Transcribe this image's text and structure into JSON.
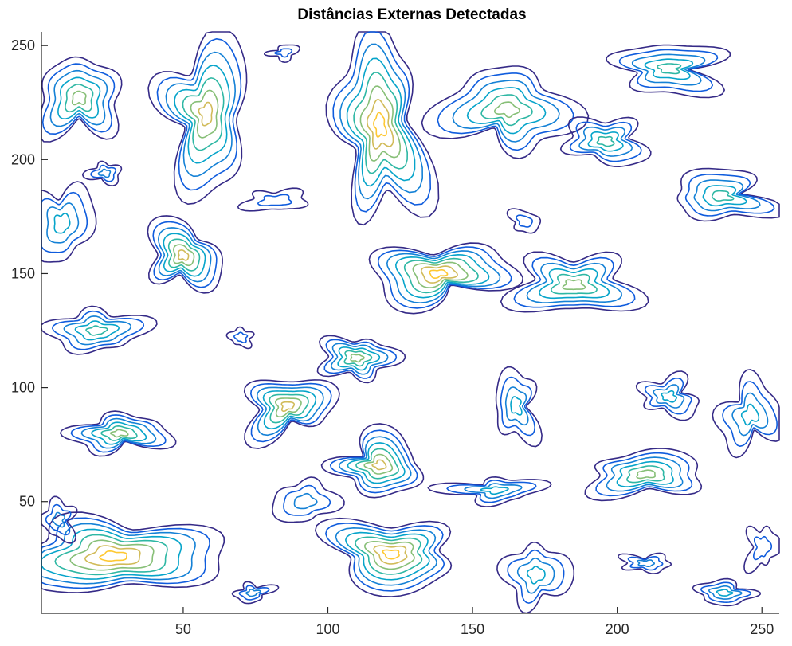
{
  "chart_data": {
    "type": "contour",
    "title": "Distâncias Externas Detectadas",
    "xlabel": "",
    "ylabel": "",
    "xlim": [
      1,
      256
    ],
    "ylim": [
      1,
      256
    ],
    "xticks": [
      50,
      100,
      150,
      200,
      250
    ],
    "yticks": [
      50,
      100,
      150,
      200,
      250
    ],
    "grid": false,
    "levels": [
      1,
      2,
      3,
      4,
      5,
      6,
      7
    ],
    "colormap": [
      "#352a87",
      "#0f5cdd",
      "#1481d6",
      "#06a4ca",
      "#2eb7a4",
      "#87bf77",
      "#d1bb59",
      "#fec832"
    ],
    "regions": [
      {
        "cx": 14,
        "cy": 227,
        "rx": 14,
        "ry": 18,
        "peak": 6
      },
      {
        "cx": 58,
        "cy": 220,
        "rx": 16,
        "ry": 30,
        "peak": 7
      },
      {
        "cx": 23,
        "cy": 194,
        "rx": 5,
        "ry": 5,
        "peak": 3
      },
      {
        "cx": 85,
        "cy": 247,
        "rx": 5,
        "ry": 3,
        "peak": 2
      },
      {
        "cx": 118,
        "cy": 215,
        "rx": 16,
        "ry": 38,
        "peak": 8
      },
      {
        "cx": 82,
        "cy": 182,
        "rx": 10,
        "ry": 5,
        "peak": 2
      },
      {
        "cx": 162,
        "cy": 222,
        "rx": 20,
        "ry": 20,
        "peak": 6
      },
      {
        "cx": 196,
        "cy": 208,
        "rx": 14,
        "ry": 10,
        "peak": 5
      },
      {
        "cx": 218,
        "cy": 240,
        "rx": 20,
        "ry": 10,
        "peak": 5
      },
      {
        "cx": 236,
        "cy": 184,
        "rx": 18,
        "ry": 10,
        "peak": 5
      },
      {
        "cx": 8,
        "cy": 172,
        "rx": 10,
        "ry": 18,
        "peak": 4
      },
      {
        "cx": 50,
        "cy": 158,
        "rx": 12,
        "ry": 15,
        "peak": 7
      },
      {
        "cx": 138,
        "cy": 150,
        "rx": 22,
        "ry": 14,
        "peak": 8
      },
      {
        "cx": 185,
        "cy": 145,
        "rx": 20,
        "ry": 14,
        "peak": 6
      },
      {
        "cx": 168,
        "cy": 173,
        "rx": 5,
        "ry": 5,
        "peak": 2
      },
      {
        "cx": 20,
        "cy": 125,
        "rx": 15,
        "ry": 10,
        "peak": 5
      },
      {
        "cx": 70,
        "cy": 122,
        "rx": 4,
        "ry": 4,
        "peak": 2
      },
      {
        "cx": 110,
        "cy": 113,
        "rx": 12,
        "ry": 10,
        "peak": 6
      },
      {
        "cx": 86,
        "cy": 92,
        "rx": 14,
        "ry": 14,
        "peak": 7
      },
      {
        "cx": 165,
        "cy": 92,
        "rx": 8,
        "ry": 14,
        "peak": 4
      },
      {
        "cx": 218,
        "cy": 96,
        "rx": 10,
        "ry": 8,
        "peak": 4
      },
      {
        "cx": 246,
        "cy": 88,
        "rx": 10,
        "ry": 16,
        "peak": 4
      },
      {
        "cx": 28,
        "cy": 80,
        "rx": 15,
        "ry": 9,
        "peak": 6
      },
      {
        "cx": 118,
        "cy": 66,
        "rx": 16,
        "ry": 12,
        "peak": 7
      },
      {
        "cx": 210,
        "cy": 62,
        "rx": 20,
        "ry": 10,
        "peak": 6
      },
      {
        "cx": 158,
        "cy": 55,
        "rx": 14,
        "ry": 6,
        "peak": 4
      },
      {
        "cx": 92,
        "cy": 50,
        "rx": 10,
        "ry": 10,
        "peak": 3
      },
      {
        "cx": 26,
        "cy": 26,
        "rx": 34,
        "ry": 18,
        "peak": 8
      },
      {
        "cx": 122,
        "cy": 27,
        "rx": 24,
        "ry": 14,
        "peak": 8
      },
      {
        "cx": 172,
        "cy": 18,
        "rx": 10,
        "ry": 15,
        "peak": 4
      },
      {
        "cx": 210,
        "cy": 23,
        "rx": 8,
        "ry": 4,
        "peak": 3
      },
      {
        "cx": 237,
        "cy": 10,
        "rx": 10,
        "ry": 5,
        "peak": 4
      },
      {
        "cx": 74,
        "cy": 10,
        "rx": 6,
        "ry": 4,
        "peak": 3
      },
      {
        "cx": 7,
        "cy": 42,
        "rx": 6,
        "ry": 8,
        "peak": 3
      },
      {
        "cx": 250,
        "cy": 30,
        "rx": 5,
        "ry": 10,
        "peak": 2
      }
    ]
  }
}
